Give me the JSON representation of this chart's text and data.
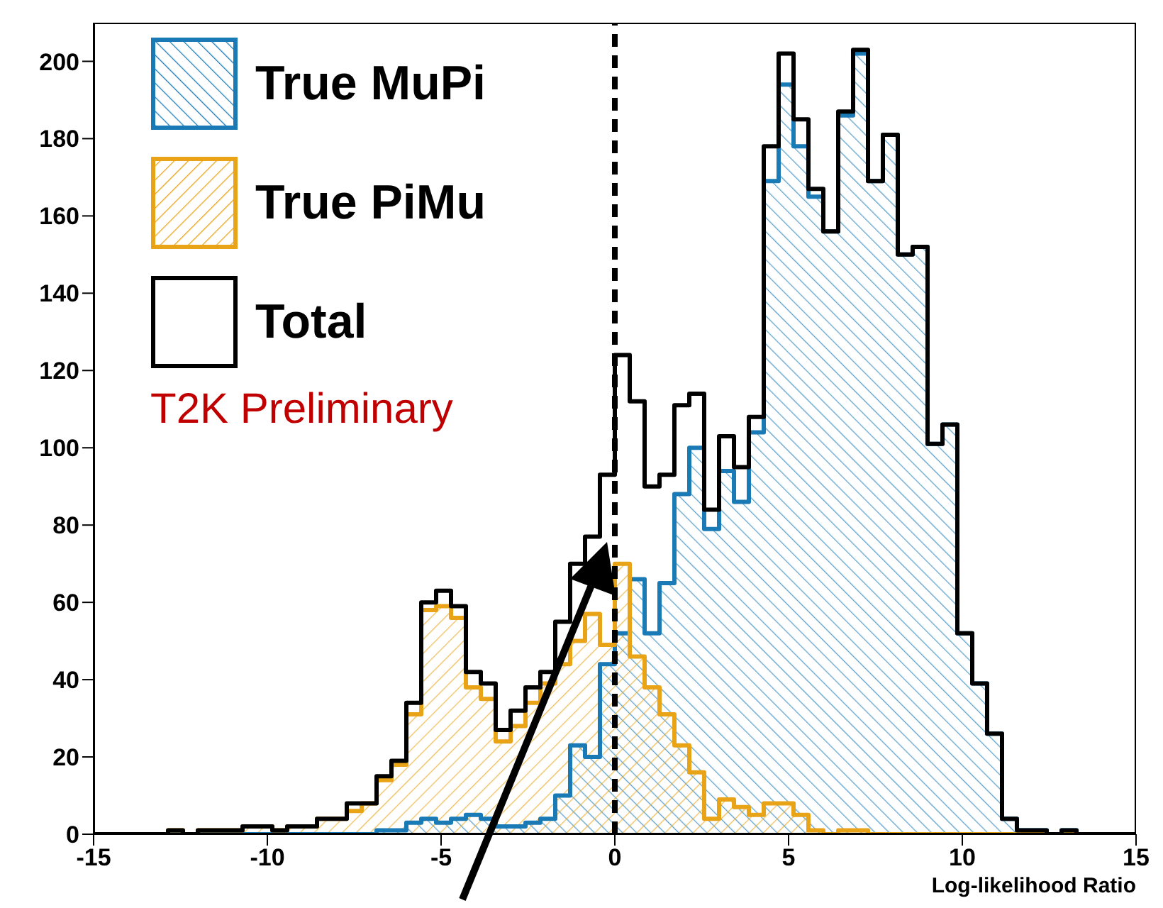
{
  "chart_data": {
    "type": "histogram",
    "xlabel": "Log-likelihood Ratio",
    "bins": [
      -15,
      -14.571,
      -14.143,
      -13.714,
      -13.286,
      -12.857,
      -12.429,
      -12,
      -11.571,
      -11.143,
      -10.714,
      -10.286,
      -9.857,
      -9.429,
      -9,
      -8.571,
      -8.143,
      -7.714,
      -7.286,
      -6.857,
      -6.429,
      -6,
      -5.571,
      -5.143,
      -4.714,
      -4.286,
      -3.857,
      -3.429,
      -3,
      -2.571,
      -2.143,
      -1.714,
      -1.286,
      -0.857,
      -0.429,
      0,
      0.429,
      0.857,
      1.286,
      1.714,
      2.143,
      2.571,
      3,
      3.429,
      3.857,
      4.286,
      4.714,
      5.143,
      5.571,
      6,
      6.429,
      6.857,
      7.286,
      7.714,
      8.143,
      8.571,
      9,
      9.429,
      9.857,
      10.286,
      10.714,
      11.143,
      11.571,
      12,
      12.429,
      12.857,
      13.286,
      13.714,
      14.143,
      14.571,
      15
    ],
    "series": [
      {
        "name": "True MuPi",
        "color": "#1a7ab5",
        "values": [
          0,
          0,
          0,
          0,
          0,
          0,
          0,
          0,
          0,
          0,
          0,
          0,
          0,
          0,
          0,
          0,
          0,
          0,
          0,
          1,
          1,
          3,
          4,
          3,
          4,
          5,
          4,
          2,
          2,
          3,
          4,
          10,
          23,
          20,
          44,
          52,
          66,
          52,
          65,
          88,
          100,
          79,
          94,
          86,
          104,
          169,
          194,
          178,
          165,
          156,
          186,
          202,
          169,
          181,
          150,
          152,
          101,
          106,
          52,
          39,
          26,
          4,
          1,
          1,
          0,
          1,
          0,
          0,
          0,
          0
        ]
      },
      {
        "name": "True PiMu",
        "color": "#e8a317",
        "values": [
          0,
          0,
          0,
          0,
          0,
          1,
          0,
          1,
          1,
          1,
          2,
          2,
          1,
          2,
          2,
          4,
          4,
          6,
          8,
          14,
          18,
          31,
          58,
          59,
          56,
          38,
          35,
          24,
          28,
          34,
          39,
          44,
          50,
          57,
          49,
          70,
          46,
          38,
          31,
          23,
          16,
          4,
          9,
          7,
          5,
          8,
          8,
          5,
          1,
          0,
          1,
          1,
          0,
          0,
          0,
          0,
          0,
          0,
          0,
          0,
          0,
          0,
          0,
          0,
          0,
          0,
          0,
          0,
          0,
          0
        ]
      },
      {
        "name": "Total",
        "color": "#000000",
        "values": [
          0,
          0,
          0,
          0,
          0,
          1,
          0,
          1,
          1,
          1,
          2,
          2,
          1,
          2,
          2,
          4,
          4,
          8,
          8,
          15,
          19,
          34,
          60,
          63,
          59,
          42,
          39,
          27,
          32,
          38,
          42,
          55,
          70,
          77,
          93,
          124,
          112,
          90,
          93,
          111,
          114,
          84,
          103,
          95,
          108,
          178,
          202,
          185,
          167,
          156,
          187,
          203,
          169,
          181,
          150,
          152,
          101,
          106,
          52,
          39,
          26,
          4,
          1,
          1,
          0,
          1,
          0,
          0,
          0,
          0
        ]
      }
    ],
    "xlim": [
      -15,
      15
    ],
    "xticks": [
      -15,
      -10,
      -5,
      0,
      5,
      10,
      15
    ],
    "ylim": [
      0,
      210
    ],
    "yticks": [
      0,
      20,
      40,
      60,
      80,
      100,
      120,
      140,
      160,
      180,
      200
    ],
    "ref_lines": [
      {
        "axis": "x",
        "value": 0,
        "color": "#000000",
        "line_style": "dashed"
      }
    ],
    "annotations": [
      "T2K Preliminary"
    ],
    "legend": "top left",
    "grid": false
  }
}
